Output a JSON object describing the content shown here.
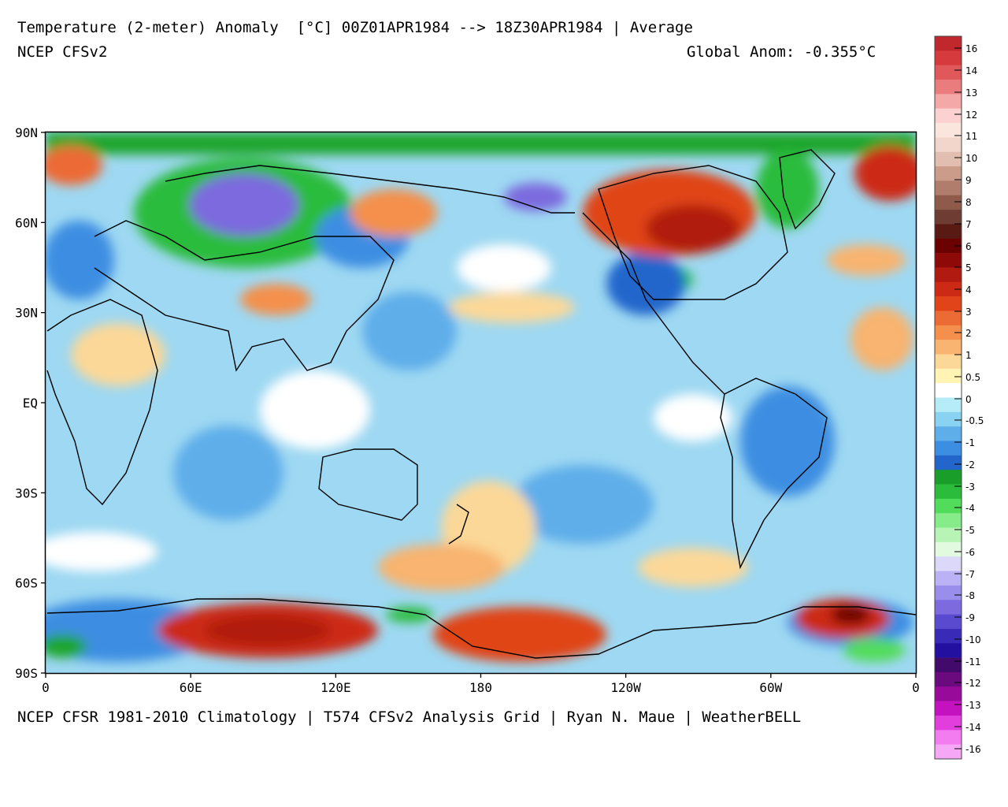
{
  "header": {
    "title": "Temperature (2-meter) Anomaly  [°C] 00Z01APR1984 --> 18Z30APR1984 | Average",
    "model": "NCEP CFSv2",
    "global_anom": "Global Anom: -0.355°C"
  },
  "footer": "NCEP CFSR 1981-2010 Climatology | T574 CFSv2 Analysis Grid | Ryan N. Maue | WeatherBELL",
  "map": {
    "lat_labels": [
      "90N",
      "60N",
      "30N",
      "EQ",
      "30S",
      "60S",
      "90S"
    ],
    "lon_labels": [
      "0",
      "60E",
      "120E",
      "180",
      "120W",
      "60W",
      "0"
    ]
  },
  "legend": {
    "labels": [
      "16",
      "14",
      "13",
      "12",
      "11",
      "10",
      "9",
      "8",
      "7",
      "6",
      "5",
      "4",
      "3",
      "2",
      "1",
      "0.5",
      "0",
      "-0.5",
      "-1",
      "-2",
      "-3",
      "-4",
      "-5",
      "-6",
      "-7",
      "-8",
      "-9",
      "-10",
      "-11",
      "-12",
      "-13",
      "-14",
      "-16"
    ],
    "colors": [
      "#c0282e",
      "#d63a3c",
      "#e0585a",
      "#ea7c7e",
      "#f4a8a8",
      "#fbd2d0",
      "#fbe6de",
      "#f2d6cc",
      "#e2beb0",
      "#cc9c8a",
      "#b07c6c",
      "#8e5a4a",
      "#6e3c32",
      "#5a1a14",
      "#6a0000",
      "#8e0a08",
      "#b01a10",
      "#cc2a14",
      "#e04418",
      "#ec6a34",
      "#f4904c",
      "#f8b470",
      "#fbd898",
      "#fff4b4",
      "#ffffff",
      "#b6ecf8",
      "#8ad2f2",
      "#5eaeea",
      "#3c8ee2",
      "#2266cc",
      "#1a9e2a",
      "#2cbc3c",
      "#52dc5c",
      "#86ec8a",
      "#b8f4b6",
      "#e2fae0",
      "#dcd8fa",
      "#bab2f4",
      "#9a8eec",
      "#7c6ade",
      "#5a4ad0",
      "#3a2ab8",
      "#2410a0",
      "#420a6a",
      "#6a0a7e",
      "#980a9a",
      "#c412c0",
      "#e23ede",
      "#f27cf0",
      "#f6a8f6"
    ]
  }
}
